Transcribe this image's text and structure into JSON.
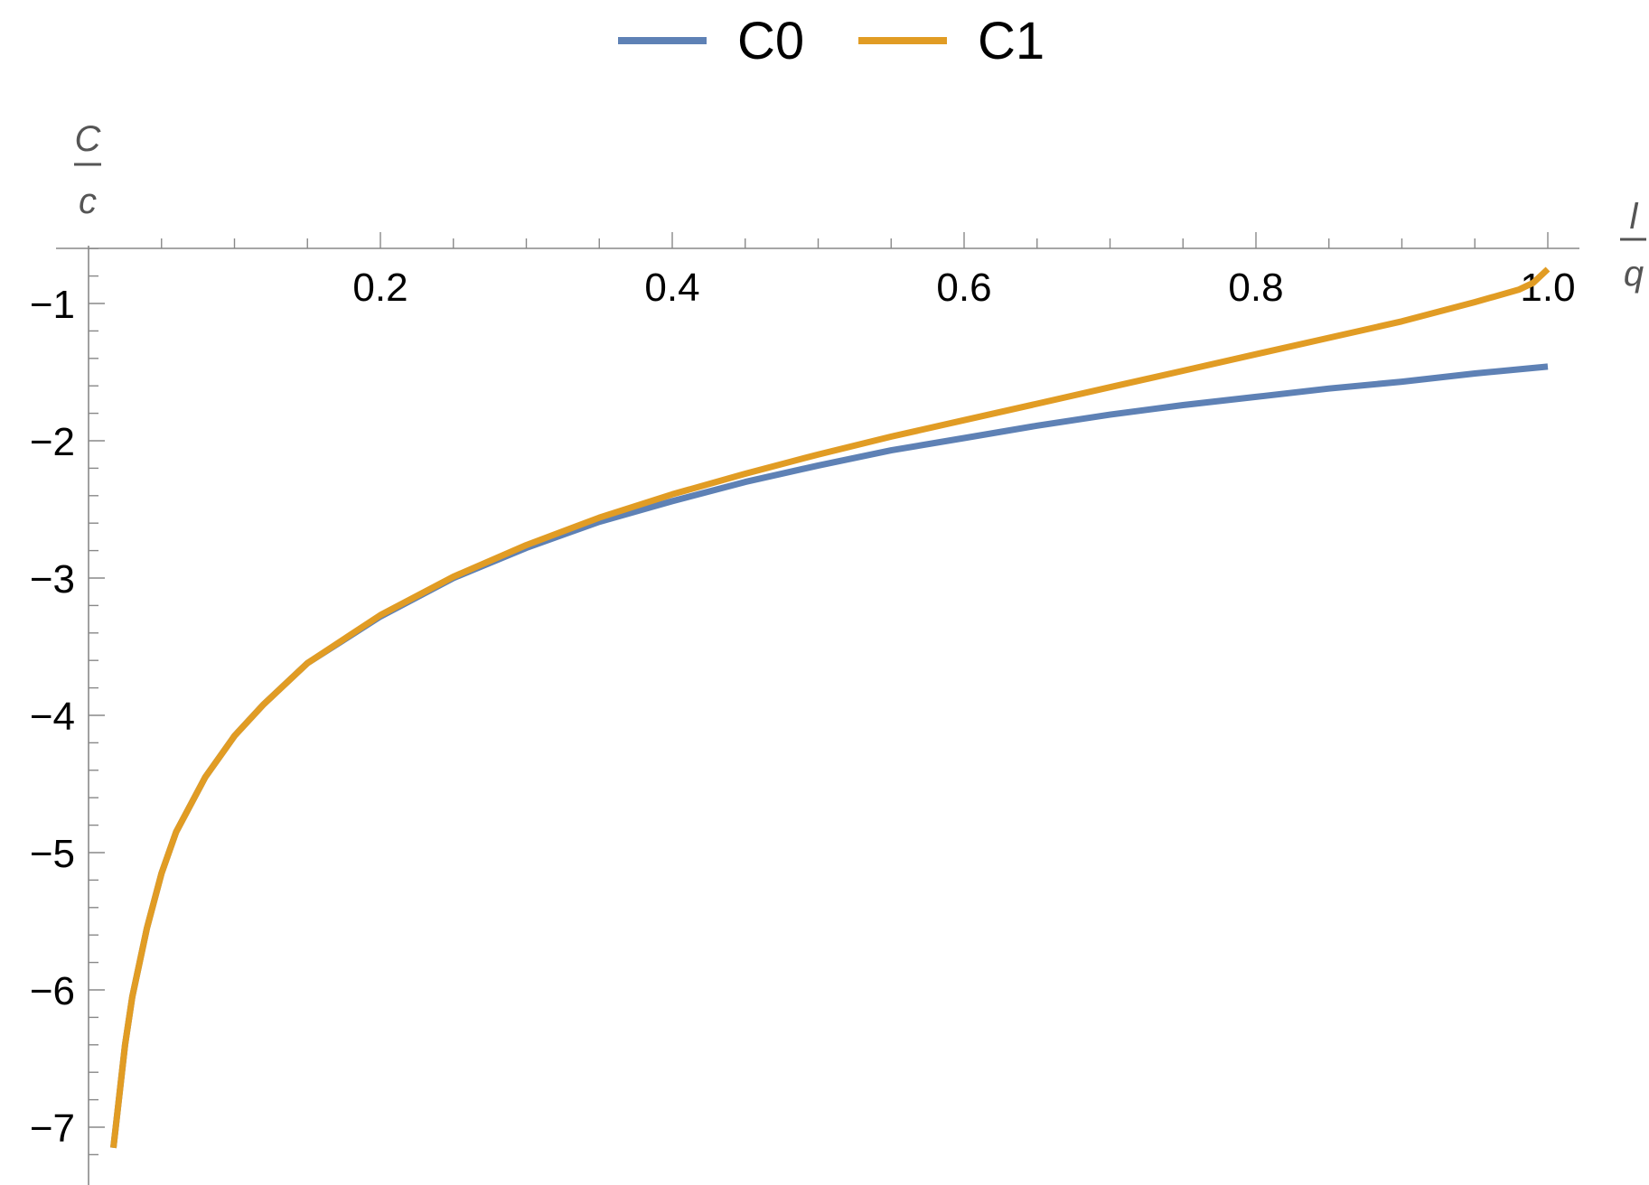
{
  "chart_data": {
    "type": "line",
    "title": "",
    "xlabel": {
      "numerator": "l",
      "denominator": "q"
    },
    "ylabel": {
      "numerator": "C",
      "denominator": "c"
    },
    "xlim": [
      0,
      1.02
    ],
    "ylim": [
      -7.5,
      -0.35
    ],
    "x_ticks": [
      0.2,
      0.4,
      0.6,
      0.8,
      1.0
    ],
    "x_tick_labels": [
      "0.2",
      "0.4",
      "0.6",
      "0.8",
      "1.0"
    ],
    "y_ticks": [
      -1,
      -2,
      -3,
      -4,
      -5,
      -6,
      -7
    ],
    "y_tick_labels": [
      "−1",
      "−2",
      "−3",
      "−4",
      "−5",
      "−6",
      "−7"
    ],
    "grid": false,
    "legend_position": "top-center",
    "series": [
      {
        "name": "C0",
        "color": "#5E81B5",
        "x": [
          0.017,
          0.025,
          0.03,
          0.04,
          0.05,
          0.06,
          0.08,
          0.1,
          0.12,
          0.15,
          0.2,
          0.25,
          0.3,
          0.35,
          0.4,
          0.45,
          0.5,
          0.55,
          0.6,
          0.65,
          0.7,
          0.75,
          0.8,
          0.85,
          0.9,
          0.95,
          1.0
        ],
        "y": [
          -7.15,
          -6.4,
          -6.05,
          -5.55,
          -5.15,
          -4.85,
          -4.45,
          -4.15,
          -3.92,
          -3.62,
          -3.28,
          -3.0,
          -2.78,
          -2.59,
          -2.44,
          -2.3,
          -2.18,
          -2.07,
          -1.98,
          -1.89,
          -1.81,
          -1.74,
          -1.68,
          -1.62,
          -1.57,
          -1.51,
          -1.46
        ]
      },
      {
        "name": "C1",
        "color": "#E19C24",
        "x": [
          0.017,
          0.025,
          0.03,
          0.04,
          0.05,
          0.06,
          0.08,
          0.1,
          0.12,
          0.15,
          0.2,
          0.25,
          0.3,
          0.35,
          0.4,
          0.45,
          0.5,
          0.55,
          0.6,
          0.65,
          0.7,
          0.75,
          0.8,
          0.85,
          0.9,
          0.95,
          0.98,
          0.99,
          1.0
        ],
        "y": [
          -7.15,
          -6.4,
          -6.05,
          -5.55,
          -5.15,
          -4.85,
          -4.45,
          -4.15,
          -3.92,
          -3.62,
          -3.27,
          -2.99,
          -2.76,
          -2.56,
          -2.39,
          -2.24,
          -2.1,
          -1.97,
          -1.85,
          -1.73,
          -1.61,
          -1.49,
          -1.37,
          -1.25,
          -1.13,
          -0.99,
          -0.9,
          -0.85,
          -0.75
        ]
      }
    ]
  }
}
